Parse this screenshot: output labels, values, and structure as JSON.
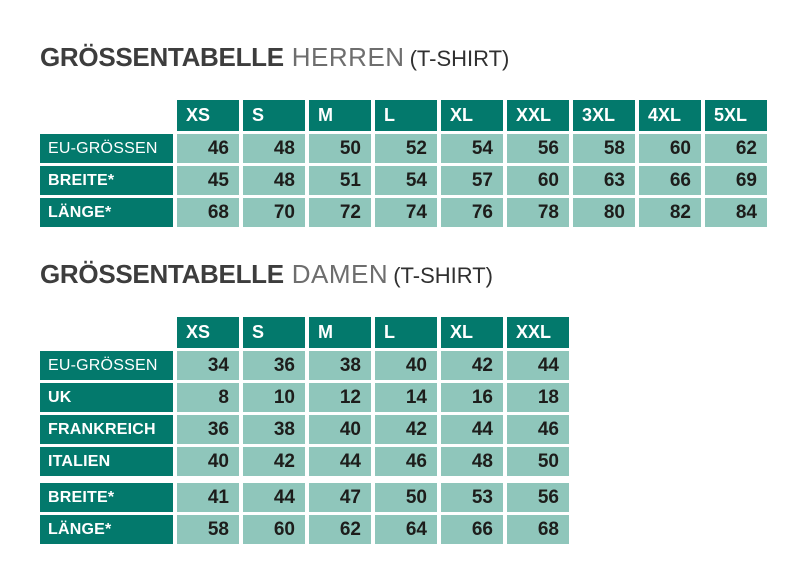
{
  "colors": {
    "header_teal": "#03796C",
    "cell_green": "#8FC6BB",
    "number_text": "#1d1d1b",
    "title_main": "#3d3d3d",
    "title_sub": "#6e6e6e",
    "title_suffix": "#303030",
    "background": "#ffffff"
  },
  "tables": [
    {
      "title_main": "GRÖSSENTABELLE",
      "title_sub": "HERREN",
      "title_suffix": "(T-SHIRT)",
      "sizes": [
        "XS",
        "S",
        "M",
        "L",
        "XL",
        "XXL",
        "3XL",
        "4XL",
        "5XL"
      ],
      "rows": [
        {
          "label": "EU-GRÖSSEN",
          "bold": false,
          "gap_before": false,
          "values": [
            46,
            48,
            50,
            52,
            54,
            56,
            58,
            60,
            62
          ]
        },
        {
          "label": "BREITE*",
          "bold": true,
          "gap_before": false,
          "values": [
            45,
            48,
            51,
            54,
            57,
            60,
            63,
            66,
            69
          ]
        },
        {
          "label": "LÄNGE*",
          "bold": true,
          "gap_before": false,
          "values": [
            68,
            70,
            72,
            74,
            76,
            78,
            80,
            82,
            84
          ]
        }
      ]
    },
    {
      "title_main": "GRÖSSENTABELLE",
      "title_sub": "DAMEN",
      "title_suffix": "(T-SHIRT)",
      "sizes": [
        "XS",
        "S",
        "M",
        "L",
        "XL",
        "XXL"
      ],
      "rows": [
        {
          "label": "EU-GRÖSSEN",
          "bold": false,
          "gap_before": false,
          "values": [
            34,
            36,
            38,
            40,
            42,
            44
          ]
        },
        {
          "label": "UK",
          "bold": true,
          "gap_before": false,
          "values": [
            8,
            10,
            12,
            14,
            16,
            18
          ]
        },
        {
          "label": "FRANKREICH",
          "bold": true,
          "gap_before": false,
          "values": [
            36,
            38,
            40,
            42,
            44,
            46
          ]
        },
        {
          "label": "ITALIEN",
          "bold": true,
          "gap_before": false,
          "values": [
            40,
            42,
            44,
            46,
            48,
            50
          ]
        },
        {
          "label": "BREITE*",
          "bold": true,
          "gap_before": true,
          "values": [
            41,
            44,
            47,
            50,
            53,
            56
          ]
        },
        {
          "label": "LÄNGE*",
          "bold": true,
          "gap_before": false,
          "values": [
            58,
            60,
            62,
            64,
            66,
            68
          ]
        }
      ]
    }
  ]
}
